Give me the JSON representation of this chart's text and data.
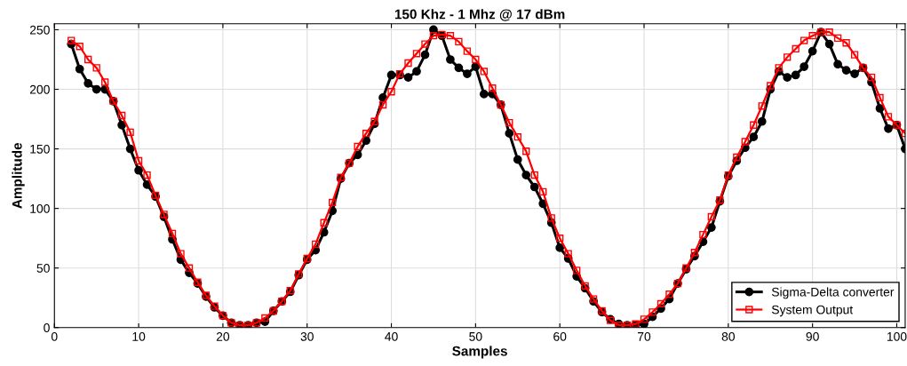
{
  "chart_data": {
    "type": "line",
    "title": "150 Khz - 1 Mhz @ 17 dBm",
    "xlabel": "Samples",
    "ylabel": "Amplitude",
    "x": [
      2,
      3,
      4,
      5,
      6,
      7,
      8,
      9,
      10,
      11,
      12,
      13,
      14,
      15,
      16,
      17,
      18,
      19,
      20,
      21,
      22,
      23,
      24,
      25,
      26,
      27,
      28,
      29,
      30,
      31,
      32,
      33,
      34,
      35,
      36,
      37,
      38,
      39,
      40,
      41,
      42,
      43,
      44,
      45,
      46,
      47,
      48,
      49,
      50,
      51,
      52,
      53,
      54,
      55,
      56,
      57,
      58,
      59,
      60,
      61,
      62,
      63,
      64,
      65,
      66,
      67,
      68,
      69,
      70,
      71,
      72,
      73,
      74,
      75,
      76,
      77,
      78,
      79,
      80,
      81,
      82,
      83,
      84,
      85,
      86,
      87,
      88,
      89,
      90,
      91,
      92,
      93,
      94,
      95,
      96,
      97,
      98,
      99,
      100,
      101
    ],
    "series": [
      {
        "name": "Sigma-Delta converter",
        "color": "#000000",
        "marker": "circle",
        "values": [
          238,
          217,
          205,
          200,
          200,
          190,
          170,
          150,
          132,
          120,
          110,
          93,
          74,
          57,
          46,
          37,
          26,
          17,
          10,
          4,
          2,
          2,
          4,
          5,
          14,
          22,
          30,
          44,
          57,
          65,
          80,
          98,
          125,
          138,
          145,
          157,
          171,
          193,
          212,
          212,
          210,
          215,
          229,
          250,
          245,
          225,
          218,
          213,
          219,
          196,
          196,
          187,
          163,
          141,
          128,
          118,
          104,
          88,
          67,
          58,
          43,
          33,
          22,
          13,
          7,
          3,
          2,
          2,
          3,
          9,
          16,
          24,
          37,
          49,
          60,
          72,
          84,
          106,
          127,
          140,
          151,
          160,
          173,
          200,
          215,
          210,
          212,
          219,
          232,
          248,
          238,
          221,
          216,
          213,
          218,
          206,
          184,
          167,
          170,
          150
        ]
      },
      {
        "name": "System Output",
        "color": "#ff0000",
        "marker": "square",
        "values": [
          241,
          236,
          225,
          218,
          206,
          190,
          178,
          164,
          140,
          128,
          111,
          95,
          79,
          62,
          50,
          38,
          27,
          18,
          10,
          4,
          2,
          2,
          4,
          8,
          14,
          22,
          31,
          45,
          58,
          70,
          88,
          105,
          126,
          138,
          152,
          163,
          173,
          187,
          198,
          213,
          222,
          230,
          238,
          245,
          246,
          245,
          240,
          232,
          225,
          215,
          201,
          187,
          172,
          160,
          148,
          128,
          114,
          92,
          75,
          62,
          48,
          35,
          24,
          14,
          6,
          2,
          2,
          3,
          7,
          13,
          20,
          28,
          37,
          50,
          63,
          78,
          93,
          107,
          128,
          143,
          156,
          170,
          186,
          203,
          218,
          227,
          234,
          241,
          245,
          248,
          248,
          243,
          239,
          229,
          218,
          210,
          193,
          177,
          170,
          163
        ]
      }
    ],
    "xlim": [
      0,
      101
    ],
    "xticks": [
      0,
      10,
      20,
      30,
      40,
      50,
      60,
      70,
      80,
      90,
      100
    ],
    "ylim": [
      0,
      255
    ],
    "yticks": [
      0,
      50,
      100,
      150,
      200,
      250
    ],
    "grid": true,
    "legend": "bottom right"
  }
}
